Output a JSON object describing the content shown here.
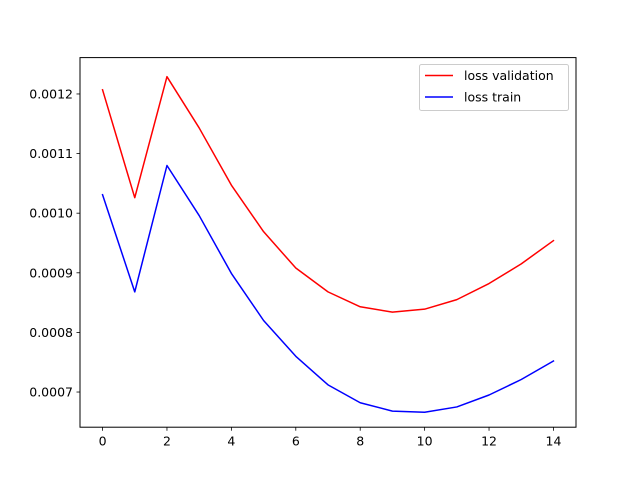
{
  "chart_data": {
    "type": "line",
    "title": "",
    "xlabel": "",
    "ylabel": "",
    "x": [
      0,
      1,
      2,
      3,
      4,
      5,
      6,
      7,
      8,
      9,
      10,
      11,
      12,
      13,
      14
    ],
    "xlim": [
      -0.7,
      14.7
    ],
    "ylim": [
      0.000641,
      0.001261
    ],
    "xticks": [
      0,
      2,
      4,
      6,
      8,
      10,
      12,
      14
    ],
    "xtick_labels": [
      "0",
      "2",
      "4",
      "6",
      "8",
      "10",
      "12",
      "14"
    ],
    "yticks": [
      0.0007,
      0.0008,
      0.0009,
      0.001,
      0.0011,
      0.0012
    ],
    "ytick_labels": [
      "0.0007",
      "0.0008",
      "0.0009",
      "0.0010",
      "0.0011",
      "0.0012"
    ],
    "grid": false,
    "legend_position": "top-right",
    "series": [
      {
        "name": "loss validation",
        "color": "#ff0000",
        "values": [
          0.001207,
          0.001026,
          0.001229,
          0.001143,
          0.001047,
          0.000969,
          0.000908,
          0.000868,
          0.000843,
          0.000834,
          0.000839,
          0.000855,
          0.000882,
          0.000915,
          0.000954
        ]
      },
      {
        "name": "loss train",
        "color": "#0000ff",
        "values": [
          0.001031,
          0.000868,
          0.00108,
          0.000996,
          0.000899,
          0.00082,
          0.00076,
          0.000712,
          0.000682,
          0.000668,
          0.000666,
          0.000675,
          0.000695,
          0.000721,
          0.000752
        ]
      }
    ]
  }
}
